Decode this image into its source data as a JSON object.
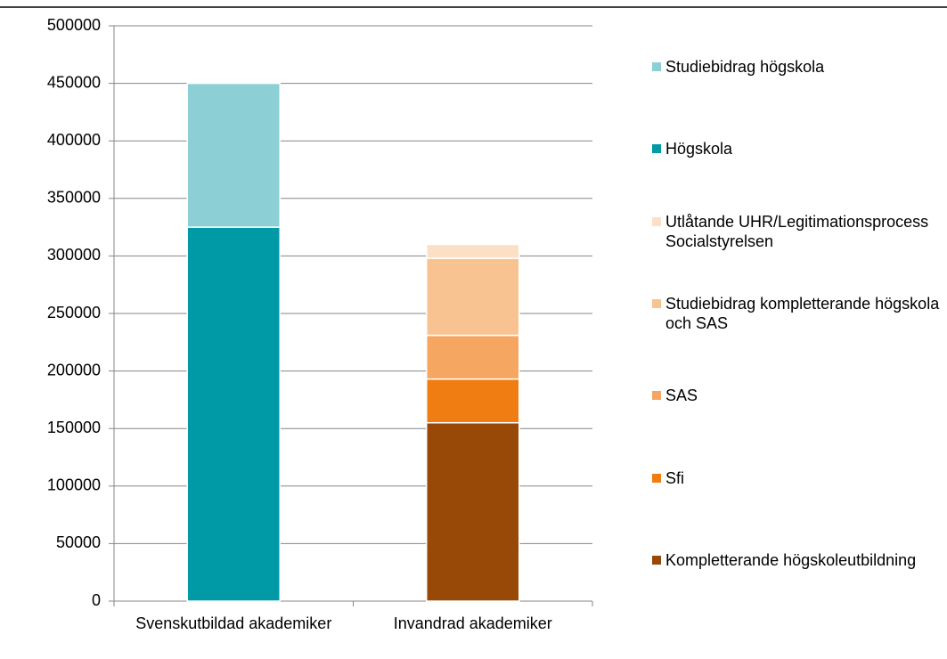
{
  "chart_data": {
    "type": "stacked_bar",
    "categories": [
      "Svenskutbildad akademiker",
      "Invandrad akademiker"
    ],
    "series": [
      {
        "name": "Kompletterande högskoleutbildning",
        "color": "#984807",
        "values": [
          null,
          155000
        ]
      },
      {
        "name": "Sfi",
        "color": "#ef7d11",
        "values": [
          null,
          38000
        ]
      },
      {
        "name": "SAS",
        "color": "#f5a661",
        "values": [
          null,
          38000
        ]
      },
      {
        "name": "Studiebidrag kompletterande högskola och SAS",
        "color": "#f9c391",
        "values": [
          null,
          67000
        ]
      },
      {
        "name": "Utlåtande UHR/Legitimationsprocess Socialstyrelsen",
        "color": "#fce0c5",
        "values": [
          null,
          12000
        ]
      },
      {
        "name": "Högskola",
        "color": "#009aa6",
        "values": [
          325000,
          null
        ]
      },
      {
        "name": "Studiebidrag högskola",
        "color": "#8ccfd4",
        "values": [
          125000,
          null
        ]
      }
    ],
    "ylim": [
      0,
      500000
    ],
    "yticks": [
      0,
      50000,
      100000,
      150000,
      200000,
      250000,
      300000,
      350000,
      400000,
      450000,
      500000
    ],
    "grid": true,
    "legend": "right"
  }
}
